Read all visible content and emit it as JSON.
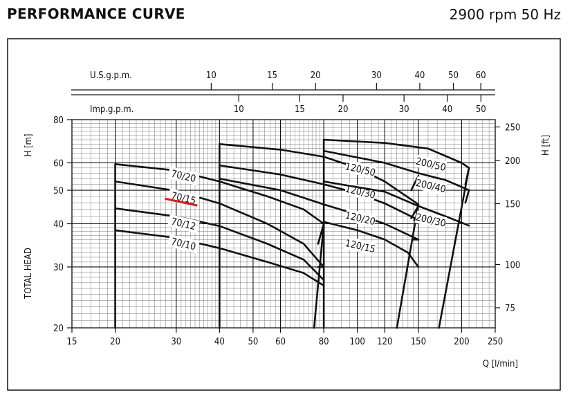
{
  "header": {
    "title": "PERFORMANCE CURVE",
    "speed": "2900 rpm 50 Hz"
  },
  "chart_data": {
    "type": "line",
    "scale": "log-log",
    "x_unit": "l/min",
    "y_unit": "m",
    "xlim": [
      15,
      250
    ],
    "ylim": [
      20,
      80
    ],
    "xlabel": "Q [l/min]",
    "ylabel": "H [m]",
    "ylabel_secondary": "H [ft]",
    "ylabel_left_title": "TOTAL HEAD",
    "top_axis1_label": "U.S.g.p.m.",
    "top_axis2_label": "Imp.g.p.m.",
    "x_ticks": [
      15,
      20,
      30,
      40,
      50,
      60,
      80,
      100,
      120,
      150,
      200,
      250
    ],
    "y_ticks": [
      20,
      30,
      40,
      50,
      60,
      80
    ],
    "ft_ticks": [
      75,
      100,
      150,
      200,
      250
    ],
    "usgpm_ticks": [
      10,
      15,
      20,
      30,
      40,
      50,
      60
    ],
    "impgpm_ticks": [
      10,
      15,
      20,
      30,
      40,
      50
    ],
    "highlighted_model": "70/15",
    "highlight_color": "#d62020",
    "series": [
      {
        "name": "70/20",
        "x": [
          20,
          30,
          40,
          55,
          70,
          80
        ],
        "y": [
          59.5,
          57,
          53,
          48,
          44,
          40
        ],
        "label_at": [
          31.5,
          55
        ]
      },
      {
        "name": "70/15",
        "x": [
          20,
          30,
          40,
          55,
          70,
          80
        ],
        "y": [
          53,
          49.8,
          45.8,
          40,
          35,
          30
        ],
        "label_at": [
          31.5,
          47.5
        ]
      },
      {
        "name": "70/12",
        "x": [
          20,
          30,
          40,
          55,
          70,
          80
        ],
        "y": [
          44.3,
          42,
          39.4,
          35,
          31.5,
          27.5
        ],
        "label_at": [
          31.5,
          40
        ]
      },
      {
        "name": "70/10",
        "x": [
          20,
          30,
          40,
          55,
          70,
          80
        ],
        "y": [
          38.3,
          36.4,
          34,
          31,
          28.8,
          26.5
        ],
        "label_at": [
          31.5,
          35
        ]
      },
      {
        "name": "120/50",
        "x": [
          40,
          60,
          80,
          100,
          120,
          150
        ],
        "y": [
          68,
          65.5,
          62.5,
          58,
          53,
          45.5
        ],
        "label_at": [
          102,
          57.5
        ]
      },
      {
        "name": "120/30",
        "x": [
          40,
          60,
          80,
          100,
          120,
          150
        ],
        "y": [
          59,
          55.5,
          52,
          49,
          45.8,
          41
        ],
        "label_at": [
          102,
          49.5
        ]
      },
      {
        "name": "120/20",
        "x": [
          40,
          60,
          80,
          100,
          120,
          150
        ],
        "y": [
          54,
          50,
          45.5,
          42.5,
          40,
          36
        ],
        "label_at": [
          102,
          41.5
        ]
      },
      {
        "name": "120/15",
        "x": [
          80,
          100,
          120,
          140,
          150
        ],
        "y": [
          40.5,
          38.3,
          36,
          33,
          30
        ],
        "label_at": [
          102,
          34.5
        ]
      },
      {
        "name": "200/50",
        "x": [
          80,
          120,
          160,
          200,
          210
        ],
        "y": [
          70,
          68.5,
          66,
          60,
          58
        ],
        "label_at": [
          163,
          59.5
        ]
      },
      {
        "name": "200/40",
        "x": [
          80,
          120,
          150,
          180,
          210
        ],
        "y": [
          65,
          60,
          56,
          53.5,
          50
        ],
        "label_at": [
          163,
          51.5
        ]
      },
      {
        "name": "200/30",
        "x": [
          80,
          120,
          150,
          180,
          210
        ],
        "y": [
          53,
          49.5,
          45,
          42,
          39.5
        ],
        "label_at": [
          163,
          41
        ]
      }
    ]
  }
}
